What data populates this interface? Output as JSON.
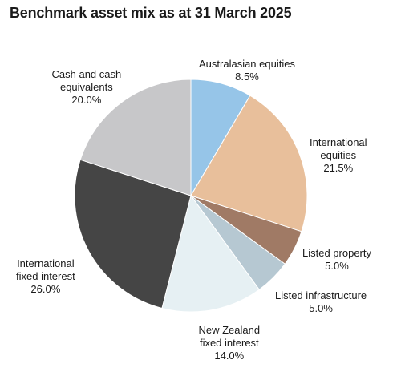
{
  "chart_data": {
    "type": "pie",
    "title": "Benchmark asset mix as at 31 March 2025",
    "start_angle_deg": 0,
    "direction": "clockwise",
    "slices": [
      {
        "label_lines": [
          "Australasian equities"
        ],
        "value_text": "8.5%",
        "value": 8.5,
        "color": "#96c5e8"
      },
      {
        "label_lines": [
          "International",
          "equities"
        ],
        "value_text": "21.5%",
        "value": 21.5,
        "color": "#e8bf9b"
      },
      {
        "label_lines": [
          "Listed property"
        ],
        "value_text": "5.0%",
        "value": 5.0,
        "color": "#a07a65"
      },
      {
        "label_lines": [
          "Listed infrastructure"
        ],
        "value_text": "5.0%",
        "value": 5.0,
        "color": "#b6c8d2"
      },
      {
        "label_lines": [
          "New Zealand",
          "fixed interest"
        ],
        "value_text": "14.0%",
        "value": 14.0,
        "color": "#e6f0f3"
      },
      {
        "label_lines": [
          "International",
          "fixed interest"
        ],
        "value_text": "26.0%",
        "value": 26.0,
        "color": "#454545"
      },
      {
        "label_lines": [
          "Cash and cash",
          "equivalents"
        ],
        "value_text": "20.0%",
        "value": 20.0,
        "color": "#c7c7c9"
      }
    ]
  }
}
